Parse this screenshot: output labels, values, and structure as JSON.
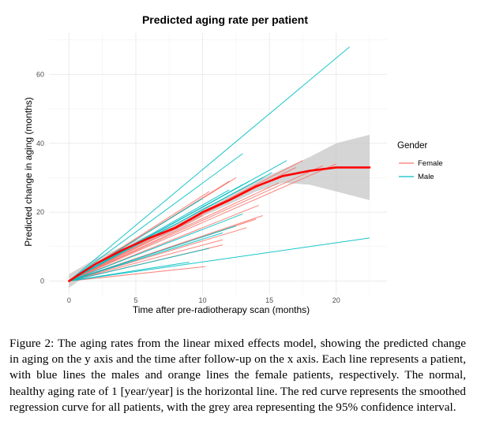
{
  "chart_data": {
    "type": "line",
    "title": "Predicted aging rate per patient",
    "xlabel": "Time after pre-radiotherapy scan (months)",
    "ylabel": "Predicted change in aging (months)",
    "xlim": [
      -1.5,
      23.8
    ],
    "ylim": [
      -4,
      72
    ],
    "x_ticks": [
      0,
      5,
      10,
      15,
      20
    ],
    "y_ticks": [
      0,
      20,
      40,
      60
    ],
    "grid": true,
    "legend": {
      "title": "Gender",
      "position": "right",
      "entries": [
        {
          "name": "Female",
          "color": "#f8766d"
        },
        {
          "name": "Male",
          "color": "#00bfc4"
        }
      ]
    },
    "series": [
      {
        "name": "Female",
        "color": "#f8766d",
        "lines": [
          {
            "x": [
              0,
              10.2
            ],
            "y": [
              0,
              4.2
            ]
          },
          {
            "x": [
              0,
              11.5
            ],
            "y": [
              0,
              10.5
            ]
          },
          {
            "x": [
              0,
              11.5
            ],
            "y": [
              0,
              12
            ]
          },
          {
            "x": [
              0,
              13.3
            ],
            "y": [
              0,
              15.5
            ]
          },
          {
            "x": [
              0,
              14
            ],
            "y": [
              0,
              18
            ]
          },
          {
            "x": [
              0,
              14.5
            ],
            "y": [
              0,
              19
            ]
          },
          {
            "x": [
              0,
              14.2
            ],
            "y": [
              0,
              22
            ]
          },
          {
            "x": [
              0,
              10
            ],
            "y": [
              0,
              19
            ]
          },
          {
            "x": [
              0,
              10.5
            ],
            "y": [
              0,
              26
            ]
          },
          {
            "x": [
              0,
              12
            ],
            "y": [
              0,
              29
            ]
          },
          {
            "x": [
              0,
              12.5
            ],
            "y": [
              0,
              30
            ]
          },
          {
            "x": [
              0,
              15.7
            ],
            "y": [
              0,
              28.5
            ]
          },
          {
            "x": [
              0,
              17
            ],
            "y": [
              0,
              33
            ]
          },
          {
            "x": [
              0,
              17.5
            ],
            "y": [
              0,
              35
            ]
          },
          {
            "x": [
              0,
              19
            ],
            "y": [
              0,
              33.5
            ]
          },
          {
            "x": [
              0,
              20
            ],
            "y": [
              0,
              34
            ]
          }
        ]
      },
      {
        "name": "Male",
        "color": "#00bfc4",
        "lines": [
          {
            "x": [
              0,
              22.5
            ],
            "y": [
              0,
              12.5
            ]
          },
          {
            "x": [
              0,
              9
            ],
            "y": [
              0,
              5.5
            ]
          },
          {
            "x": [
              0,
              10.5
            ],
            "y": [
              0,
              9.5
            ]
          },
          {
            "x": [
              0,
              11.5
            ],
            "y": [
              0,
              14
            ]
          },
          {
            "x": [
              0,
              12.5
            ],
            "y": [
              0,
              16
            ]
          },
          {
            "x": [
              0,
              13
            ],
            "y": [
              0,
              19.5
            ]
          },
          {
            "x": [
              0,
              10
            ],
            "y": [
              0,
              24
            ]
          },
          {
            "x": [
              0,
              12
            ],
            "y": [
              0,
              26.5
            ]
          },
          {
            "x": [
              0,
              13
            ],
            "y": [
              0,
              28
            ]
          },
          {
            "x": [
              0,
              13.5
            ],
            "y": [
              0,
              29
            ]
          },
          {
            "x": [
              0,
              14.5
            ],
            "y": [
              0,
              30
            ]
          },
          {
            "x": [
              0,
              15.2
            ],
            "y": [
              0,
              31.5
            ]
          },
          {
            "x": [
              0,
              16.3
            ],
            "y": [
              0,
              35
            ]
          },
          {
            "x": [
              0,
              13
            ],
            "y": [
              0,
              37
            ]
          },
          {
            "x": [
              0,
              21
            ],
            "y": [
              0,
              68
            ]
          }
        ]
      }
    ],
    "smooth_curve": {
      "color": "#ff0000",
      "x": [
        0,
        2,
        4,
        6,
        8,
        10,
        12,
        14,
        16,
        18,
        20,
        22.5
      ],
      "y": [
        0,
        5,
        9,
        12.5,
        15.5,
        20,
        23.5,
        27.5,
        30.5,
        32,
        33,
        33
      ]
    },
    "confidence_band": {
      "color": "#bebebe",
      "x": [
        0,
        2,
        4,
        6,
        8,
        10,
        12,
        14,
        16,
        18,
        20,
        22.5
      ],
      "lower": [
        -2,
        3.5,
        8,
        11.5,
        14.5,
        18.8,
        22.3,
        26,
        28.5,
        28,
        26,
        23.5
      ],
      "upper": [
        2,
        6.5,
        10,
        13.5,
        16.5,
        21.2,
        24.7,
        29,
        32.5,
        36,
        40,
        42.5
      ]
    }
  },
  "caption": "Figure 2: The aging rates from the linear mixed effects model, showing the predicted change in aging on the y axis and the time after follow-up on the x axis. Each line represents a patient, with blue lines the males and orange lines the female patients, respectively. The normal, healthy aging rate of 1 [year/year] is the horizontal line. The red curve represents the smoothed regression curve for all patients, with the grey area representing the 95% confidence interval."
}
